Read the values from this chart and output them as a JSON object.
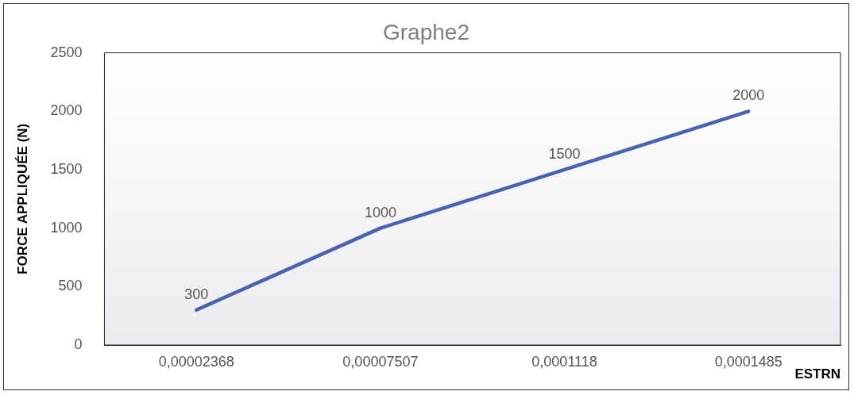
{
  "chart_data": {
    "type": "line",
    "title": "Graphe2",
    "xlabel": "ESTRN",
    "ylabel": "FORCE APPLIQUÉE (N)",
    "categories": [
      "0,00002368",
      "0,00007507",
      "0,0001118",
      "0,0001485"
    ],
    "series": [
      {
        "color": "#4a63b0",
        "values": [
          300,
          1000,
          1500,
          2000
        ]
      }
    ],
    "ylim": [
      0,
      2500
    ],
    "yticks": [
      0,
      500,
      1000,
      1500,
      2000,
      2500
    ],
    "grid": false,
    "legend": false,
    "marker": "none",
    "data_labels": true
  }
}
